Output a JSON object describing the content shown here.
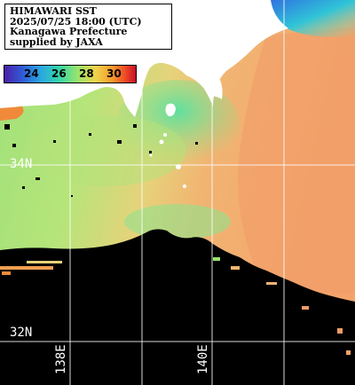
{
  "info": {
    "line1": "HIMAWARI SST",
    "line2": "2025/07/25 18:00 (UTC)",
    "line3": "Kanagawa Prefecture",
    "line4": "supplied by JAXA"
  },
  "colorbar": {
    "ticks": [
      "24",
      "26",
      "28",
      "30"
    ],
    "colors": [
      "#4b1fa8",
      "#2f5cd8",
      "#2aa8e0",
      "#35d6a8",
      "#9be46a",
      "#f0d24a",
      "#f59a2c",
      "#ee4a24",
      "#c8102a"
    ]
  },
  "grid_labels": {
    "lat_north": "34N",
    "lat_south": "32N",
    "lon_west": "138E",
    "lon_east": "140E"
  },
  "colors": {
    "land": "#ffffff",
    "no_data": "#000000",
    "grid_line": "#ffffff",
    "sst_cool": "#7fe58a",
    "sst_warm": "#f2a86a"
  }
}
